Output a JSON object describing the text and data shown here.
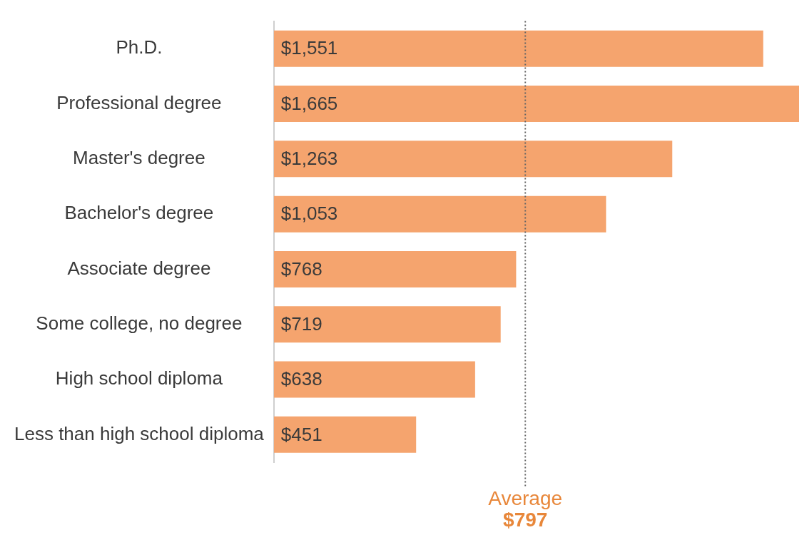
{
  "chart_data": {
    "type": "bar",
    "orientation": "horizontal",
    "categories": [
      "Ph.D.",
      "Professional degree",
      "Master's degree",
      "Bachelor's degree",
      "Associate degree",
      "Some college, no degree",
      "High school diploma",
      "Less than high school diploma"
    ],
    "values": [
      1551,
      1665,
      1263,
      1053,
      768,
      719,
      638,
      451
    ],
    "value_labels": [
      "$1,551",
      "$1,665",
      "$1,263",
      "$1,053",
      "$768",
      "$719",
      "$638",
      "$451"
    ],
    "color": "#f5a46e",
    "ref_lines": [
      {
        "axis": "x",
        "value": 797,
        "label": "Average\n$797",
        "line_style": "dotted",
        "color": "#666666"
      }
    ],
    "legend": false
  }
}
